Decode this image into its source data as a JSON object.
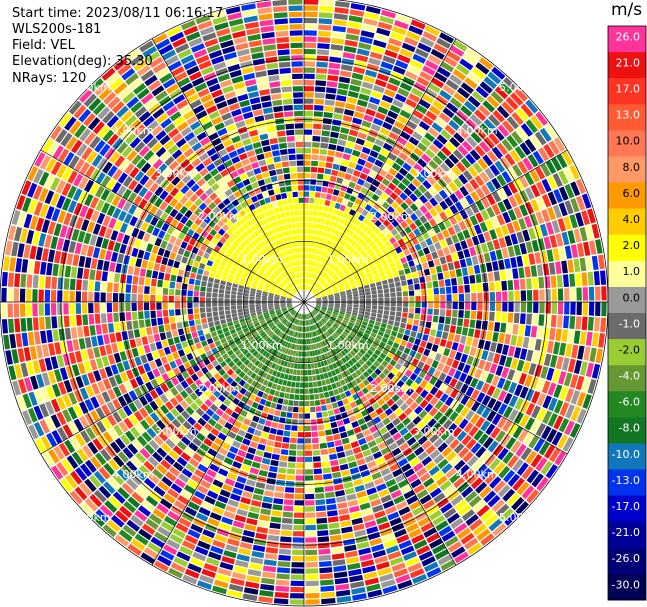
{
  "header": {
    "start_time": "Start time: 2023/08/11 06:16:17",
    "instrument": "WLS200s-181",
    "field": "Field: VEL",
    "elevation": "Elevation(deg): 35.30",
    "nrays": "NRays: 120"
  },
  "colorbar": {
    "unit": "m/s",
    "levels": [
      {
        "label": "26.0",
        "color": "#ff3399"
      },
      {
        "label": "21.0",
        "color": "#ee1111"
      },
      {
        "label": "17.0",
        "color": "#ff3322"
      },
      {
        "label": "13.0",
        "color": "#ff5a33"
      },
      {
        "label": "10.0",
        "color": "#ff7755"
      },
      {
        "label": "8.0",
        "color": "#ff9966"
      },
      {
        "label": "6.0",
        "color": "#ff9900"
      },
      {
        "label": "4.0",
        "color": "#ffcc00"
      },
      {
        "label": "2.0",
        "color": "#ffff00"
      },
      {
        "label": "1.0",
        "color": "#ffff99"
      },
      {
        "label": "0.0",
        "color": "#999999"
      },
      {
        "label": "-1.0",
        "color": "#6b6b6b"
      },
      {
        "label": "-2.0",
        "color": "#99cc33"
      },
      {
        "label": "-4.0",
        "color": "#669933"
      },
      {
        "label": "-6.0",
        "color": "#228822"
      },
      {
        "label": "-8.0",
        "color": "#117722"
      },
      {
        "label": "-10.0",
        "color": "#1177bb"
      },
      {
        "label": "-13.0",
        "color": "#0033ee"
      },
      {
        "label": "-17.0",
        "color": "#0000cc"
      },
      {
        "label": "-21.0",
        "color": "#000099"
      },
      {
        "label": "-26.0",
        "color": "#000077"
      },
      {
        "label": "-30.0",
        "color": "#000055"
      }
    ]
  },
  "chart_data": {
    "type": "heatmap",
    "projection": "polar-ppi",
    "field": "VEL",
    "nrays": 120,
    "range_rings_km": [
      1.0,
      2.0,
      3.0,
      4.0,
      5.0
    ],
    "ring_labels": [
      "1.00km",
      "2.00km",
      "3.00km",
      "4.00km",
      "5.00km"
    ],
    "max_range_km": 5.0,
    "valid_data_range_km": 1.7,
    "sectors": [
      {
        "azimuth_deg": [
          285,
          360
        ],
        "velocity_ms": [
          2.0,
          4.0
        ],
        "note": ""
      },
      {
        "azimuth_deg": [
          0,
          75
        ],
        "velocity_ms": [
          2.0,
          4.0
        ]
      },
      {
        "azimuth_deg": [
          75,
          105
        ],
        "velocity_ms": [
          -1.0,
          0.0
        ]
      },
      {
        "azimuth_deg": [
          105,
          255
        ],
        "velocity_ms": [
          -6.0,
          -2.0
        ]
      },
      {
        "azimuth_deg": [
          255,
          285
        ],
        "velocity_ms": [
          -1.0,
          0.0
        ]
      }
    ],
    "colorbar_ticks": [
      26.0,
      21.0,
      17.0,
      13.0,
      10.0,
      8.0,
      6.0,
      4.0,
      2.0,
      1.0,
      0.0,
      -1.0,
      -2.0,
      -4.0,
      -6.0,
      -8.0,
      -10.0,
      -13.0,
      -17.0,
      -21.0,
      -26.0,
      -30.0
    ]
  }
}
